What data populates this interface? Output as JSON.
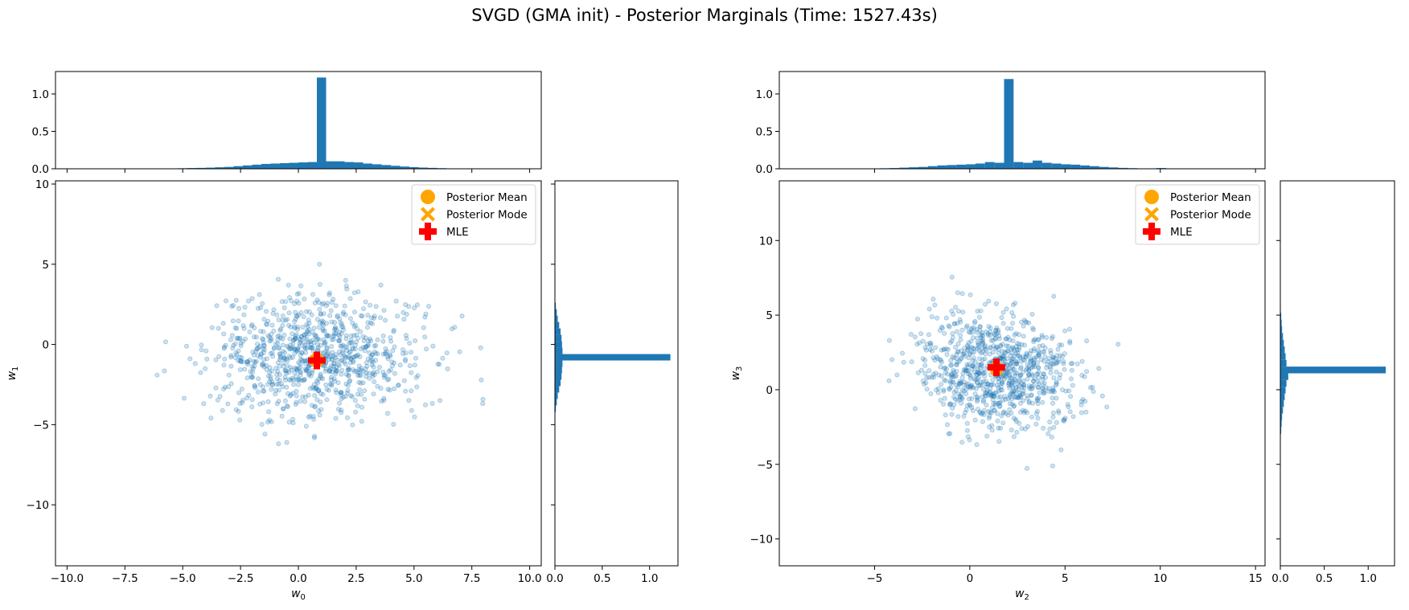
{
  "title": "SVGD (GMA init) - Posterior Marginals (Time: 1527.43s)",
  "colors": {
    "scatter": "#1f77b4",
    "hist": "#1f77b4",
    "mean": "#ffa500",
    "mode": "#ffa500",
    "mle": "#ff0000"
  },
  "legend": {
    "items": [
      {
        "label": "Posterior Mean",
        "marker": "circle",
        "color": "#ffa500"
      },
      {
        "label": "Posterior Mode",
        "marker": "x-filled",
        "color": "#ffa500"
      },
      {
        "label": "MLE",
        "marker": "plus-filled",
        "color": "#ff0000"
      }
    ]
  },
  "chart_data": [
    {
      "type": "scatter",
      "name": "w0-w1",
      "xlabel_base": "w",
      "xlabel_sub": "0",
      "ylabel_base": "w",
      "ylabel_sub": "1",
      "xlim": [
        -10.5,
        10.5
      ],
      "ylim": [
        -13.8,
        10.2
      ],
      "x_ticks": [
        -10.0,
        -7.5,
        -5.0,
        -2.5,
        0.0,
        2.5,
        5.0,
        7.5,
        10.0
      ],
      "x_tick_labels": [
        "−10.0",
        "−7.5",
        "−5.0",
        "−2.5",
        "0.0",
        "2.5",
        "5.0",
        "7.5",
        "10.0"
      ],
      "y_ticks": [
        -10,
        -5,
        0,
        5,
        10
      ],
      "y_tick_labels": [
        "−10",
        "−5",
        "0",
        "5",
        "10"
      ],
      "cloud": {
        "mean_x": 0.8,
        "mean_y": -0.8,
        "sd_x": 2.3,
        "sd_y": 1.9,
        "n": 900,
        "seed": 7
      },
      "posterior_mean": [
        0.8,
        -0.9
      ],
      "posterior_mode": [
        0.8,
        -1.0
      ],
      "mle": [
        0.8,
        -1.0
      ],
      "top_hist": {
        "ylim": [
          0,
          1.3
        ],
        "y_ticks": [
          0.0,
          0.5,
          1.0
        ],
        "y_tick_labels": [
          "0.0",
          "0.5",
          "1.0"
        ],
        "bin_edges_start": -6.0,
        "bin_width": 0.4,
        "values": [
          0.005,
          0.005,
          0.007,
          0.01,
          0.012,
          0.015,
          0.02,
          0.025,
          0.035,
          0.045,
          0.055,
          0.065,
          0.07,
          0.075,
          0.08,
          0.085,
          0.09,
          1.22,
          0.1,
          0.1,
          0.09,
          0.085,
          0.07,
          0.06,
          0.05,
          0.04,
          0.03,
          0.022,
          0.016,
          0.012,
          0.008,
          0.005,
          0.003
        ]
      },
      "right_hist": {
        "xlim": [
          0,
          1.3
        ],
        "x_ticks": [
          0.0,
          0.5,
          1.0
        ],
        "x_tick_labels": [
          "0.0",
          "0.5",
          "1.0"
        ],
        "bin_edges_start": -4.2,
        "bin_width": 0.4,
        "values": [
          0.01,
          0.02,
          0.03,
          0.045,
          0.06,
          0.07,
          0.075,
          0.08,
          1.22,
          0.08,
          0.075,
          0.07,
          0.06,
          0.045,
          0.03,
          0.02,
          0.01
        ]
      }
    },
    {
      "type": "scatter",
      "name": "w2-w3",
      "xlabel_base": "w",
      "xlabel_sub": "2",
      "ylabel_base": "w",
      "ylabel_sub": "3",
      "xlim": [
        -10.0,
        15.5
      ],
      "ylim": [
        -11.8,
        14.0
      ],
      "x_ticks": [
        -5,
        0,
        5,
        10,
        15
      ],
      "x_tick_labels": [
        "−5",
        "0",
        "5",
        "10",
        "15"
      ],
      "y_ticks": [
        -10,
        -5,
        0,
        5,
        10
      ],
      "y_tick_labels": [
        "−10",
        "−5",
        "0",
        "5",
        "10"
      ],
      "cloud": {
        "mean_x": 1.5,
        "mean_y": 1.2,
        "sd_x": 2.0,
        "sd_y": 1.9,
        "n": 900,
        "seed": 19
      },
      "posterior_mean": [
        1.4,
        1.4
      ],
      "posterior_mode": [
        1.4,
        1.4
      ],
      "mle": [
        1.4,
        1.5
      ],
      "top_hist": {
        "ylim": [
          0,
          1.3
        ],
        "y_ticks": [
          0.0,
          0.5,
          1.0
        ],
        "y_tick_labels": [
          "0.0",
          "0.5",
          "1.0"
        ],
        "bin_edges_start": -5.2,
        "bin_width": 0.5,
        "values": [
          0.005,
          0.007,
          0.01,
          0.015,
          0.02,
          0.025,
          0.035,
          0.045,
          0.05,
          0.055,
          0.06,
          0.07,
          0.09,
          0.08,
          1.2,
          0.09,
          0.08,
          0.11,
          0.08,
          0.07,
          0.06,
          0.055,
          0.045,
          0.035,
          0.025,
          0.018,
          0.012,
          0.008,
          0.005,
          0.004,
          0.01,
          0.003,
          0.002
        ]
      },
      "right_hist": {
        "xlim": [
          0,
          1.3
        ],
        "x_ticks": [
          0.0,
          0.5,
          1.0
        ],
        "x_tick_labels": [
          "0.0",
          "0.5",
          "1.0"
        ],
        "bin_edges_start": -3.4,
        "bin_width": 0.45,
        "values": [
          0.005,
          0.01,
          0.015,
          0.02,
          0.03,
          0.04,
          0.05,
          0.06,
          0.07,
          0.09,
          1.2,
          0.07,
          0.06,
          0.05,
          0.04,
          0.03,
          0.02,
          0.015,
          0.01,
          0.005
        ]
      }
    }
  ]
}
